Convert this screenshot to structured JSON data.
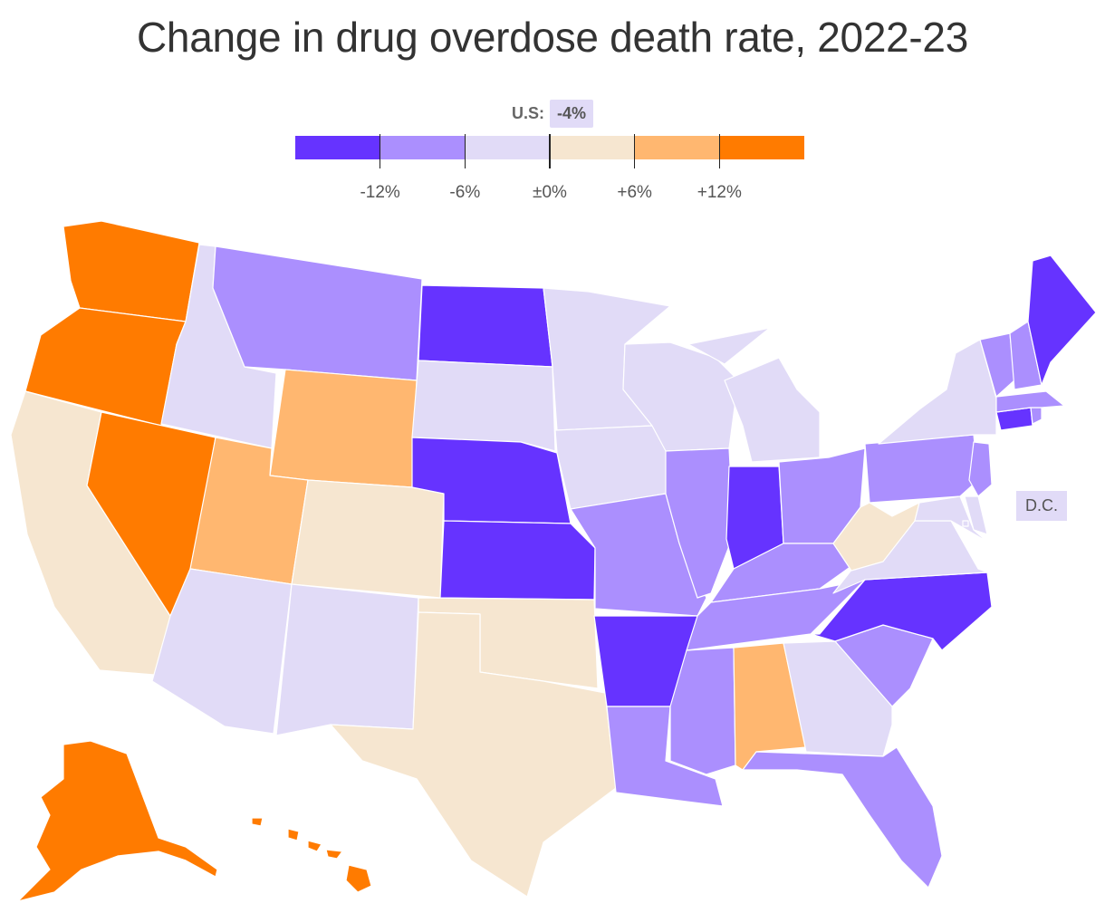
{
  "title": "Change in drug overdose death rate, 2022‑23",
  "us_summary": {
    "label": "U.S:",
    "value": "-4%"
  },
  "legend": {
    "colors": [
      "#6633ff",
      "#ab8ffe",
      "#e1dbf7",
      "#f6e6d0",
      "#ffb770",
      "#ff7b00"
    ],
    "ticks": [
      "-12%",
      "-6%",
      "±0%",
      "+6%",
      "+12%"
    ]
  },
  "dc_label": "D.C.",
  "state_bins": {
    "WA": 5,
    "OR": 5,
    "NV": 5,
    "AK": 5,
    "HI": 5,
    "WY": 4,
    "UT": 4,
    "AL": 4,
    "CA": 3,
    "CO": 3,
    "TX": 3,
    "OK": 3,
    "WV": 3,
    "ID": 2,
    "AZ": 2,
    "NM": 2,
    "SD": 2,
    "MN": 2,
    "IA": 2,
    "WI": 2,
    "MI": 2,
    "NY": 2,
    "GA": 2,
    "VA": 2,
    "MD": 2,
    "DE": 2,
    "DC": 2,
    "MT": 1,
    "MO": 1,
    "IL": 1,
    "KY": 1,
    "TN": 1,
    "OH": 1,
    "PA": 1,
    "NJ": 1,
    "VT": 1,
    "NH": 1,
    "MA": 1,
    "RI": 1,
    "MS": 1,
    "LA": 1,
    "FL": 1,
    "SC": 1,
    "ND": 0,
    "NE": 0,
    "KS": 0,
    "AR": 0,
    "IN": 0,
    "NC": 0,
    "ME": 0,
    "CT": 0
  }
}
